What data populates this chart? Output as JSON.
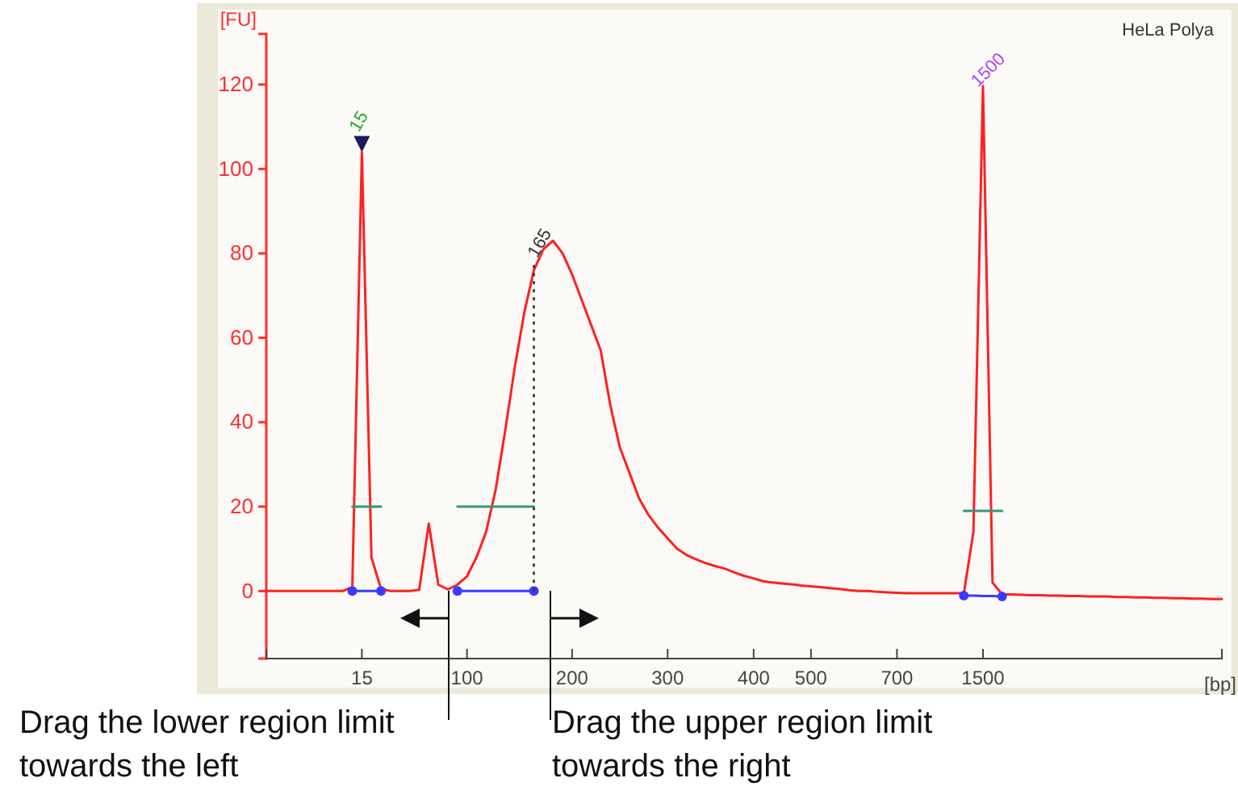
{
  "chart_data": {
    "type": "line",
    "title": "HeLa Polya",
    "xlabel": "[bp]",
    "ylabel": "[FU]",
    "categories": [
      null,
      null,
      null,
      null,
      null,
      null,
      null,
      null,
      null,
      null,
      "15",
      null,
      null,
      null,
      null,
      null,
      null,
      null,
      null,
      null,
      null,
      "100",
      null,
      null,
      null,
      null,
      null,
      null,
      null,
      null,
      null,
      null,
      "200",
      null,
      null,
      null,
      null,
      null,
      null,
      null,
      null,
      null,
      "300",
      null,
      null,
      null,
      null,
      null,
      null,
      null,
      null,
      "400",
      null,
      null,
      null,
      null,
      null,
      "500",
      null,
      null,
      null,
      null,
      null,
      null,
      null,
      null,
      "700",
      null,
      null,
      null,
      null,
      null,
      null,
      null,
      null,
      "1500",
      null,
      null,
      null,
      null,
      null,
      null,
      null,
      null,
      null,
      null,
      null,
      null,
      null,
      null,
      null,
      null,
      null,
      null,
      null,
      null,
      null,
      null,
      null,
      null,
      null
    ],
    "ylim": [
      -16,
      132
    ],
    "yticks": [
      0,
      20,
      40,
      60,
      80,
      100,
      120
    ],
    "grid": false,
    "series": [
      {
        "color": "#ff2020",
        "values": [
          0,
          0,
          0,
          0,
          0,
          0,
          0,
          0,
          0,
          1,
          104,
          8,
          0.5,
          0,
          0,
          0,
          0.3,
          16,
          1.5,
          0.4,
          1.5,
          3.5,
          8,
          14,
          24,
          38,
          53,
          66,
          76,
          81,
          83,
          80,
          75,
          69,
          63,
          57,
          44,
          34,
          28,
          22,
          18,
          15,
          12.5,
          10,
          8.5,
          7.5,
          6.6,
          5.9,
          5.3,
          4.4,
          3.6,
          3,
          2.3,
          2,
          1.8,
          1.6,
          1.3,
          1.1,
          0.9,
          0.7,
          0.5,
          0.2,
          0,
          0,
          -0.2,
          -0.3,
          -0.4,
          -0.5,
          -0.5,
          -0.5,
          -0.5,
          -0.5,
          -0.5,
          -0.5,
          14,
          119.6,
          2,
          -0.8,
          -0.8,
          -0.9,
          -1,
          -1,
          -1.1,
          -1.1,
          -1.2,
          -1.2,
          -1.3,
          -1.3,
          -1.3,
          -1.4,
          -1.4,
          -1.5,
          -1.5,
          -1.6,
          -1.6,
          -1.7,
          -1.7,
          -1.8,
          -1.8,
          -1.9,
          -1.9
        ]
      },
      {
        "color": "#3a3aff",
        "values": [
          null,
          null,
          null,
          null,
          null,
          null,
          null,
          null,
          null,
          0,
          0,
          0,
          0,
          null,
          null,
          null,
          null,
          null,
          null,
          null,
          0,
          0,
          0,
          0,
          0,
          0,
          0,
          0,
          0,
          null,
          null,
          null,
          null,
          null,
          null,
          null,
          null,
          null,
          null,
          null,
          null,
          null,
          null,
          null,
          null,
          null,
          null,
          null,
          null,
          null,
          null,
          null,
          null,
          null,
          null,
          null,
          null,
          null,
          null,
          null,
          null,
          null,
          null,
          null,
          null,
          null,
          null,
          null,
          null,
          null,
          null,
          null,
          null,
          -1.1,
          -1.1,
          -1.2,
          -1.2,
          -1.3,
          null,
          null,
          null,
          null,
          null,
          null,
          null,
          null,
          null,
          null,
          null,
          null,
          null,
          null,
          null,
          null,
          null,
          null,
          null,
          null,
          null,
          null,
          null
        ]
      },
      {
        "type": "scatter",
        "color": "#3a3aff",
        "values": [
          null,
          null,
          null,
          null,
          null,
          null,
          null,
          null,
          null,
          0,
          null,
          null,
          0,
          null,
          null,
          null,
          null,
          null,
          null,
          null,
          0,
          null,
          null,
          null,
          null,
          null,
          null,
          null,
          0,
          null,
          null,
          null,
          null,
          null,
          null,
          null,
          null,
          null,
          null,
          null,
          null,
          null,
          null,
          null,
          null,
          null,
          null,
          null,
          null,
          null,
          null,
          null,
          null,
          null,
          null,
          null,
          null,
          null,
          null,
          null,
          null,
          null,
          null,
          null,
          null,
          null,
          null,
          null,
          null,
          null,
          null,
          null,
          null,
          -1.1,
          null,
          null,
          null,
          -1.3,
          null,
          null,
          null,
          null,
          null,
          null,
          null,
          null,
          null,
          null,
          null,
          null,
          null,
          null,
          null,
          null,
          null,
          null,
          null,
          null,
          null,
          null,
          null
        ]
      },
      {
        "color": "#339977",
        "values": [
          null,
          null,
          null,
          null,
          null,
          null,
          null,
          null,
          null,
          20,
          20,
          20,
          20,
          null,
          null,
          null,
          null,
          null,
          null,
          null,
          20,
          20,
          20,
          20,
          20,
          20,
          20,
          20,
          20,
          null,
          null,
          null,
          null,
          null,
          null,
          null,
          null,
          null,
          null,
          null,
          null,
          null,
          null,
          null,
          null,
          null,
          null,
          null,
          null,
          null,
          null,
          null,
          null,
          null,
          null,
          null,
          null,
          null,
          null,
          null,
          null,
          null,
          null,
          null,
          null,
          null,
          null,
          null,
          null,
          null,
          null,
          null,
          null,
          19,
          19,
          19,
          19,
          19,
          null,
          null,
          null,
          null,
          null,
          null,
          null,
          null,
          null,
          null,
          null,
          null,
          null,
          null,
          null,
          null,
          null,
          null,
          null,
          null,
          null,
          null,
          null
        ]
      }
    ],
    "annotations": [
      {
        "text": "15",
        "x": "15",
        "y": 104
      },
      {
        "text": "1500",
        "x": "1500",
        "y": 119.6
      },
      {
        "text": "165",
        "y": 78
      },
      "Drag the lower region limit towards the left",
      "Drag the upper region limit towards the right"
    ]
  }
}
